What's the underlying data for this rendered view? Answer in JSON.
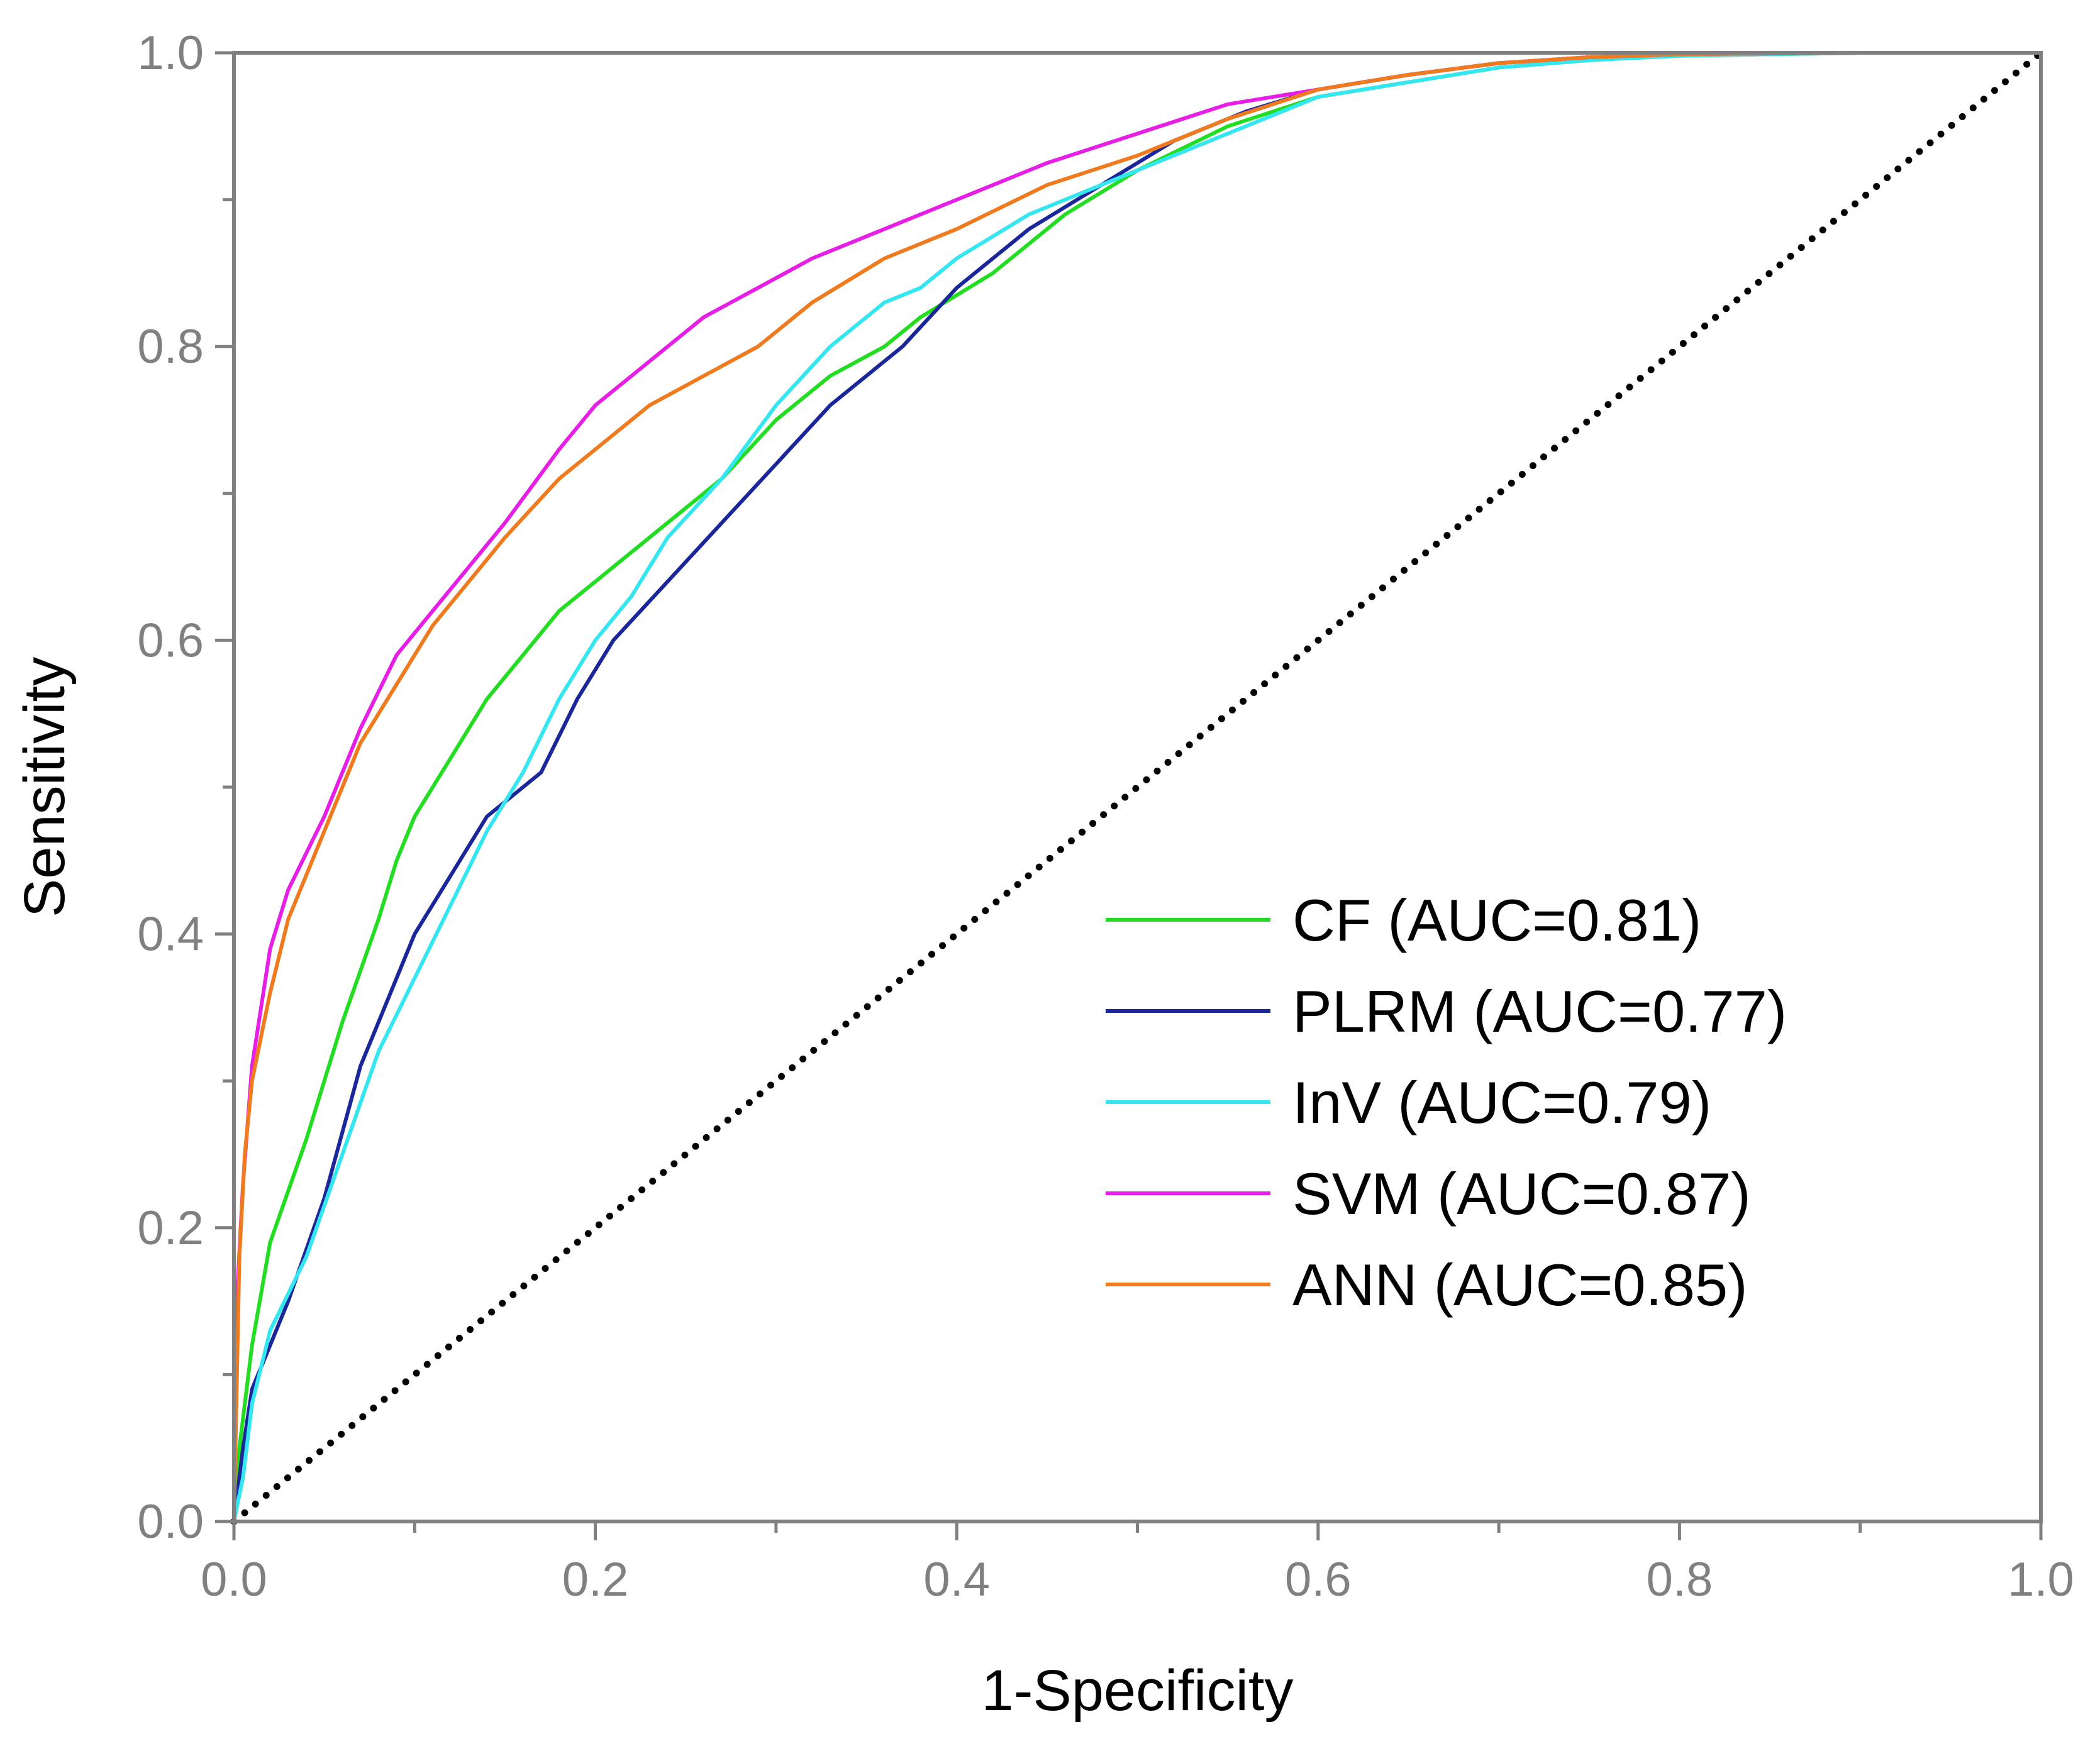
{
  "chart_data": {
    "type": "line",
    "title": "",
    "xlabel": "1-Specificity",
    "ylabel": "Sensitivity",
    "xlim": [
      0.0,
      1.0
    ],
    "ylim": [
      0.0,
      1.0
    ],
    "grid": false,
    "legend_position": "bottom-right",
    "x_ticks": [
      "0.0",
      "0.2",
      "0.4",
      "0.6",
      "0.8",
      "1.0"
    ],
    "y_ticks": [
      "0.0",
      "0.2",
      "0.4",
      "0.6",
      "0.8",
      "1.0"
    ],
    "reference_line": {
      "name": "chance",
      "style": "dotted",
      "color": "#000000",
      "x": [
        0,
        1
      ],
      "y": [
        0,
        1
      ]
    },
    "series": [
      {
        "name": "CF (AUC=0.81)",
        "color": "#22dd22",
        "x": [
          0,
          0.003,
          0.01,
          0.02,
          0.04,
          0.06,
          0.08,
          0.09,
          0.1,
          0.12,
          0.14,
          0.16,
          0.18,
          0.2,
          0.22,
          0.24,
          0.27,
          0.3,
          0.33,
          0.36,
          0.38,
          0.42,
          0.46,
          0.5,
          0.55,
          0.6,
          0.65,
          0.7,
          0.75,
          0.8,
          0.9,
          1.0
        ],
        "y": [
          0,
          0.05,
          0.12,
          0.19,
          0.26,
          0.34,
          0.41,
          0.45,
          0.48,
          0.52,
          0.56,
          0.59,
          0.62,
          0.64,
          0.66,
          0.68,
          0.71,
          0.75,
          0.78,
          0.8,
          0.82,
          0.85,
          0.89,
          0.92,
          0.95,
          0.97,
          0.98,
          0.99,
          0.995,
          0.998,
          1.0,
          1.0
        ]
      },
      {
        "name": "PLRM (AUC=0.77)",
        "color": "#1a2699",
        "x": [
          0,
          0.005,
          0.01,
          0.02,
          0.03,
          0.05,
          0.07,
          0.09,
          0.1,
          0.12,
          0.14,
          0.17,
          0.19,
          0.21,
          0.24,
          0.27,
          0.3,
          0.33,
          0.35,
          0.37,
          0.4,
          0.44,
          0.48,
          0.52,
          0.56,
          0.6,
          0.65,
          0.7,
          0.75,
          0.8,
          0.9,
          1.0
        ],
        "y": [
          0,
          0.05,
          0.09,
          0.12,
          0.15,
          0.22,
          0.31,
          0.37,
          0.4,
          0.44,
          0.48,
          0.51,
          0.56,
          0.6,
          0.64,
          0.68,
          0.72,
          0.76,
          0.78,
          0.8,
          0.84,
          0.88,
          0.91,
          0.94,
          0.96,
          0.975,
          0.985,
          0.993,
          0.997,
          0.999,
          1.0,
          1.0
        ]
      },
      {
        "name": "InV (AUC=0.79)",
        "color": "#33e6f0",
        "x": [
          0,
          0.005,
          0.01,
          0.02,
          0.04,
          0.06,
          0.08,
          0.1,
          0.12,
          0.14,
          0.16,
          0.18,
          0.2,
          0.22,
          0.24,
          0.27,
          0.3,
          0.33,
          0.36,
          0.38,
          0.4,
          0.44,
          0.48,
          0.52,
          0.56,
          0.6,
          0.65,
          0.7,
          0.75,
          0.8,
          0.9,
          1.0
        ],
        "y": [
          0,
          0.03,
          0.08,
          0.13,
          0.18,
          0.25,
          0.32,
          0.37,
          0.42,
          0.47,
          0.51,
          0.56,
          0.6,
          0.63,
          0.67,
          0.71,
          0.76,
          0.8,
          0.83,
          0.84,
          0.86,
          0.89,
          0.91,
          0.93,
          0.95,
          0.97,
          0.98,
          0.99,
          0.995,
          0.998,
          1.0,
          1.0
        ]
      },
      {
        "name": "SVM (AUC=0.87)",
        "color": "#e61ee6",
        "x": [
          0,
          0.002,
          0.005,
          0.01,
          0.02,
          0.03,
          0.05,
          0.07,
          0.09,
          0.11,
          0.13,
          0.15,
          0.18,
          0.2,
          0.23,
          0.26,
          0.29,
          0.32,
          0.36,
          0.4,
          0.45,
          0.5,
          0.55,
          0.6,
          0.65,
          0.7,
          0.75,
          0.8,
          0.9,
          1.0
        ],
        "y": [
          0,
          0.16,
          0.23,
          0.31,
          0.39,
          0.43,
          0.48,
          0.54,
          0.59,
          0.62,
          0.65,
          0.68,
          0.73,
          0.76,
          0.79,
          0.82,
          0.84,
          0.86,
          0.88,
          0.9,
          0.925,
          0.945,
          0.965,
          0.975,
          0.985,
          0.993,
          0.997,
          0.999,
          1.0,
          1.0
        ]
      },
      {
        "name": "ANN (AUC=0.85)",
        "color": "#f07a1e",
        "x": [
          0,
          0.003,
          0.006,
          0.01,
          0.02,
          0.03,
          0.05,
          0.07,
          0.09,
          0.11,
          0.13,
          0.15,
          0.18,
          0.2,
          0.23,
          0.26,
          0.29,
          0.32,
          0.36,
          0.4,
          0.45,
          0.5,
          0.55,
          0.6,
          0.65,
          0.7,
          0.75,
          0.8,
          0.9,
          1.0
        ],
        "y": [
          0,
          0.18,
          0.25,
          0.3,
          0.36,
          0.41,
          0.47,
          0.53,
          0.57,
          0.61,
          0.64,
          0.67,
          0.71,
          0.73,
          0.76,
          0.78,
          0.8,
          0.83,
          0.86,
          0.88,
          0.91,
          0.93,
          0.955,
          0.975,
          0.985,
          0.993,
          0.997,
          0.999,
          1.0,
          1.0
        ]
      }
    ]
  }
}
